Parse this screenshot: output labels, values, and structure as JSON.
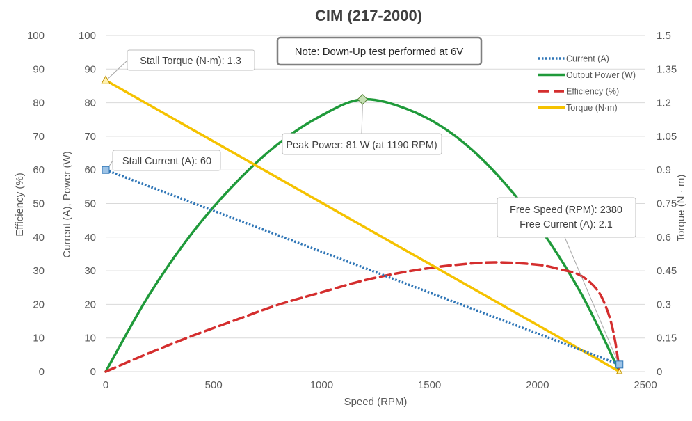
{
  "chart_data": {
    "type": "line",
    "title": "CIM (217-2000)",
    "xlabel": "Speed (RPM)",
    "ylabel_left_outer": "Efficiency (%)",
    "ylabel_left_inner": "Current (A), Power (W)",
    "ylabel_right": "Torque (N · m)",
    "xlim": [
      0,
      2500
    ],
    "x_ticks": [
      "0",
      "500",
      "1000",
      "1500",
      "2000",
      "2500"
    ],
    "ylim_left": [
      0,
      100
    ],
    "y_ticks_left": [
      "0",
      "10",
      "20",
      "30",
      "40",
      "50",
      "60",
      "70",
      "80",
      "90",
      "100"
    ],
    "ylim_right": [
      0,
      1.5
    ],
    "y_ticks_right": [
      "0",
      "0.15",
      "0.3",
      "0.45",
      "0.6",
      "0.75",
      "0.9",
      "1.05",
      "1.2",
      "1.35",
      "1.5"
    ],
    "grid": "horizontal",
    "legend_position": "top-right",
    "series": [
      {
        "name": "Current (A)",
        "axis": "left",
        "color": "#2e75b6",
        "style": "dotted",
        "x": [
          0,
          2380
        ],
        "y": [
          60,
          2.1
        ]
      },
      {
        "name": "Output Power (W)",
        "axis": "left",
        "color": "#1f9a3a",
        "style": "solid",
        "x": [
          0,
          200,
          400,
          600,
          800,
          1000,
          1190,
          1400,
          1600,
          1800,
          2000,
          2200,
          2380
        ],
        "y": [
          0,
          22.7,
          41.2,
          56.0,
          67.8,
          76.2,
          81.0,
          78.0,
          71.0,
          59.5,
          43.7,
          23.5,
          0
        ]
      },
      {
        "name": "Efficiency (%)",
        "axis": "left",
        "color": "#d42e2e",
        "style": "dashed",
        "x": [
          0,
          200,
          400,
          600,
          800,
          1000,
          1200,
          1400,
          1600,
          1800,
          2000,
          2100,
          2200,
          2280,
          2330,
          2360,
          2380
        ],
        "y": [
          0,
          5.5,
          10.6,
          15.3,
          19.9,
          23.6,
          27.2,
          29.8,
          31.6,
          32.5,
          31.8,
          30.5,
          28.6,
          24.0,
          17.0,
          9.0,
          0
        ]
      },
      {
        "name": "Torque (N·m)",
        "axis": "right",
        "color": "#f5c200",
        "style": "solid",
        "x": [
          0,
          2380
        ],
        "y": [
          1.3,
          0
        ]
      }
    ],
    "annotations": [
      {
        "text": "Note: Down-Up test performed at 6V"
      },
      {
        "text": "Stall Torque (N·m): 1.3"
      },
      {
        "text": "Stall Current (A): 60"
      },
      {
        "text": "Peak Power: 81 W (at 1190 RPM)"
      },
      {
        "text": "Free Speed (RPM): 2380"
      },
      {
        "text": "Free Current (A): 2.1"
      }
    ]
  }
}
